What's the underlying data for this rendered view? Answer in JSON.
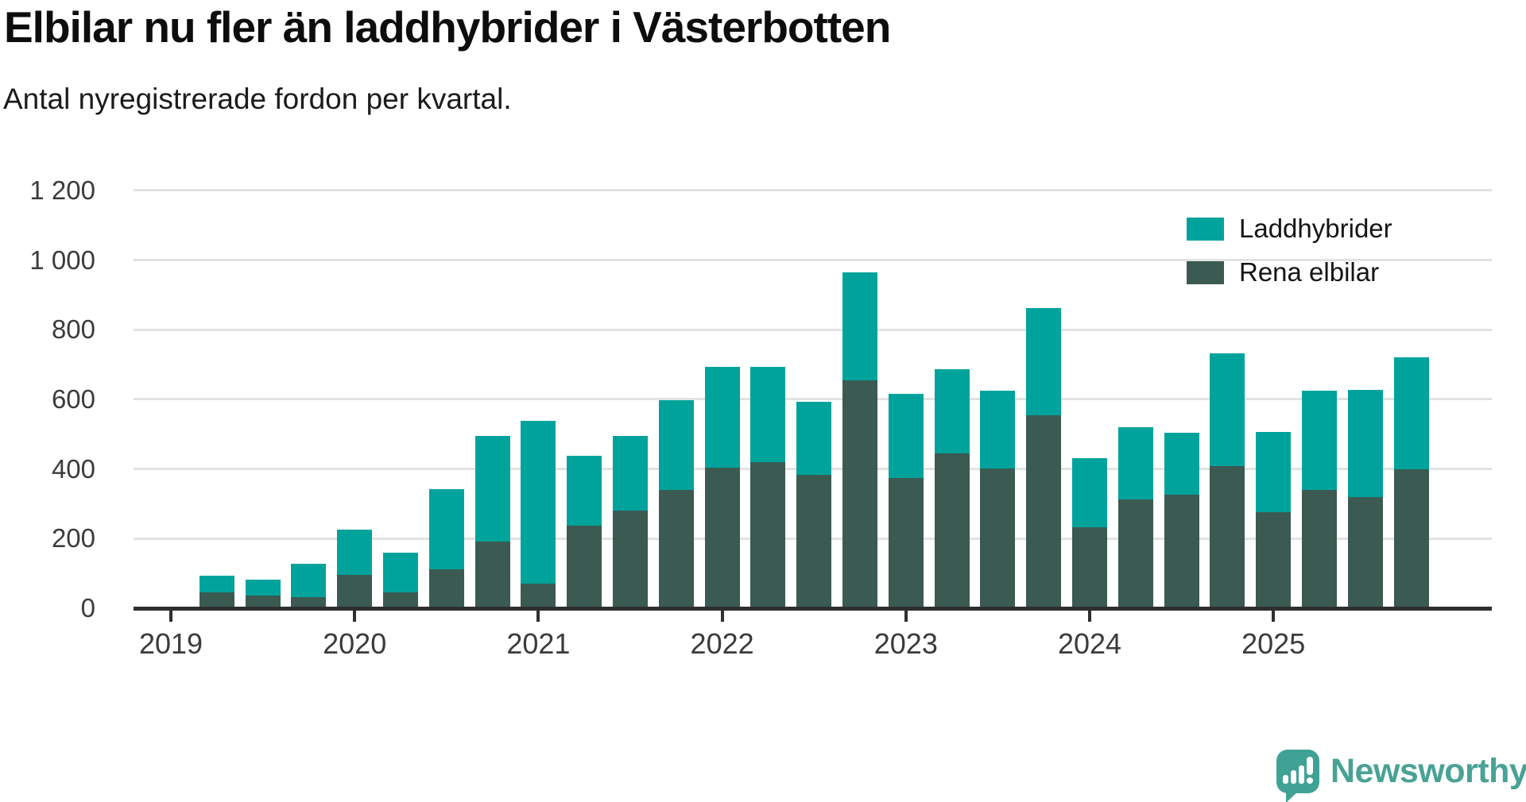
{
  "header": {
    "title": "Elbilar nu fler än laddhybrider i Västerbotten",
    "subtitle": "Antal nyregistrerade fordon per kvartal."
  },
  "branding": {
    "logo_icon": "newsworthy-speech-bubble-chart-icon",
    "wordmark": "Newsworthy",
    "brand_color": "#48a295"
  },
  "colors": {
    "laddhybrider": "#00a39b",
    "rena_elbilar": "#3a5a52",
    "gridline": "#e2e2e2",
    "axis": "#2f2f2f",
    "text": "#3b3b3b"
  },
  "chart_data": {
    "type": "bar",
    "stacked": true,
    "title": "Elbilar nu fler än laddhybrider i Västerbotten",
    "subtitle": "Antal nyregistrerade fordon per kvartal.",
    "xlabel": "",
    "ylabel": "",
    "ylim": [
      0,
      1200
    ],
    "grid": "horizontal",
    "legend_position": "top-right",
    "x": [
      "2019Q2",
      "2019Q3",
      "2019Q4",
      "2020Q1",
      "2020Q2",
      "2020Q3",
      "2020Q4",
      "2021Q1",
      "2021Q2",
      "2021Q3",
      "2021Q4",
      "2022Q1",
      "2022Q2",
      "2022Q3",
      "2022Q4",
      "2023Q1",
      "2023Q2",
      "2023Q3",
      "2023Q4",
      "2024Q1",
      "2024Q2",
      "2024Q3",
      "2024Q4",
      "2025Q1",
      "2025Q2",
      "2025Q3",
      "2025Q4"
    ],
    "stack_order_bottom_to_top": [
      "Rena elbilar",
      "Laddhybrider"
    ],
    "series": [
      {
        "name": "Laddhybrider",
        "color": "#00a39b",
        "values": [
          48,
          45,
          96,
          130,
          114,
          230,
          303,
          468,
          200,
          215,
          258,
          290,
          273,
          212,
          310,
          240,
          241,
          222,
          306,
          200,
          207,
          179,
          324,
          232,
          284,
          306,
          321
        ]
      },
      {
        "name": "Rena elbilar",
        "color": "#3a5a52",
        "values": [
          46,
          37,
          32,
          96,
          46,
          112,
          192,
          70,
          238,
          280,
          340,
          403,
          420,
          382,
          655,
          375,
          445,
          402,
          555,
          232,
          313,
          326,
          408,
          275,
          340,
          320,
          400
        ]
      }
    ],
    "x_tick_labels": [
      "2019",
      "2020",
      "2021",
      "2022",
      "2023",
      "2024",
      "2025"
    ],
    "y_ticks": [
      {
        "v": 0,
        "label": "0"
      },
      {
        "v": 200,
        "label": "200"
      },
      {
        "v": 400,
        "label": "400"
      },
      {
        "v": 600,
        "label": "600"
      },
      {
        "v": 800,
        "label": "800"
      },
      {
        "v": 1000,
        "label": "1 000"
      },
      {
        "v": 1200,
        "label": "1 200"
      }
    ]
  }
}
